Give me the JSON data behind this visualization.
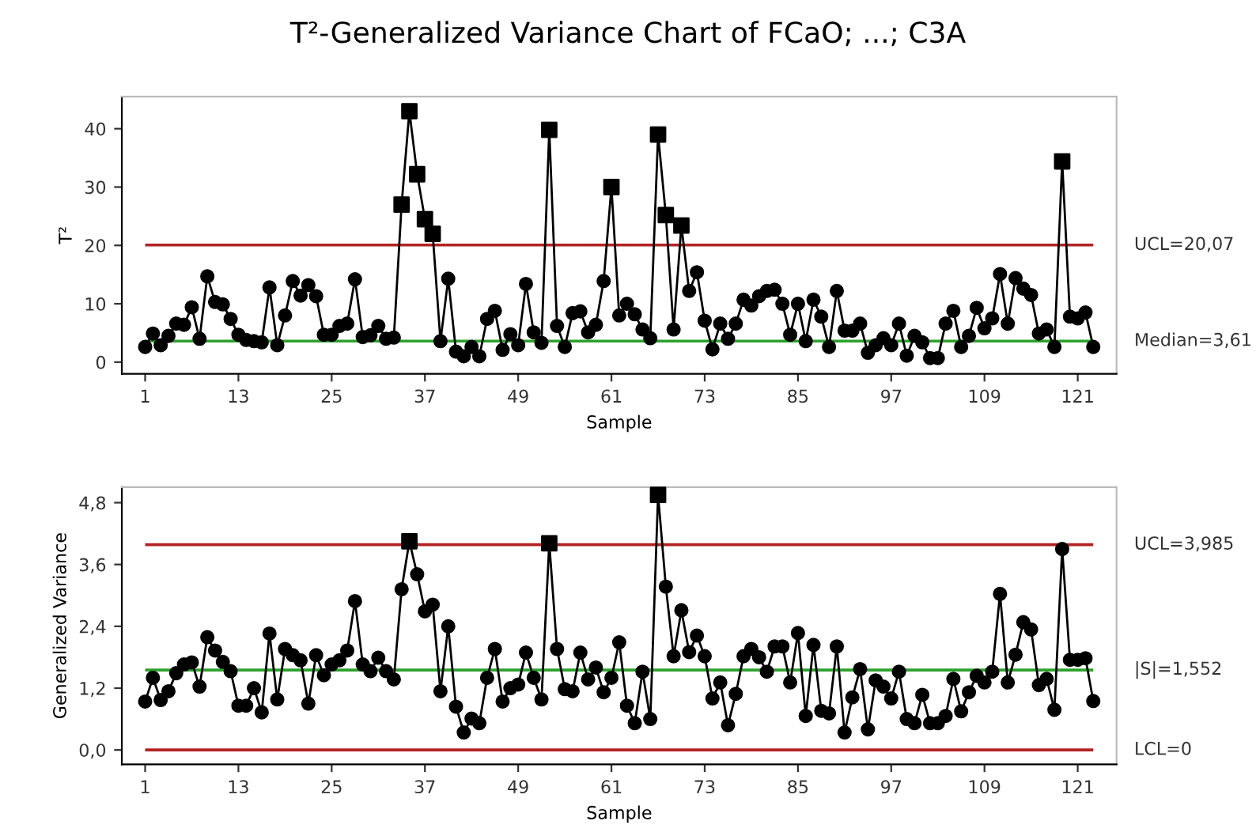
{
  "chart_data": [
    {
      "type": "line",
      "title": "T²-Generalized Variance Chart of FCaO; ...; C3A",
      "xlabel": "Sample",
      "ylabel": "T²",
      "grid": false,
      "legend": false,
      "marker": "circle",
      "line_style": "solid",
      "xlim": [
        -2,
        126
      ],
      "xticks": [
        1,
        13,
        25,
        37,
        49,
        61,
        73,
        85,
        97,
        109,
        121
      ],
      "ylim": [
        -2,
        45.5
      ],
      "yticks": [
        0,
        10,
        20,
        30,
        40
      ],
      "x": [
        1,
        2,
        3,
        4,
        5,
        6,
        7,
        8,
        9,
        10,
        11,
        12,
        13,
        14,
        15,
        16,
        17,
        18,
        19,
        20,
        21,
        22,
        23,
        24,
        25,
        26,
        27,
        28,
        29,
        30,
        31,
        32,
        33,
        34,
        35,
        36,
        37,
        38,
        39,
        40,
        41,
        42,
        43,
        44,
        45,
        46,
        47,
        48,
        49,
        50,
        51,
        52,
        53,
        54,
        55,
        56,
        57,
        58,
        59,
        60,
        61,
        62,
        63,
        64,
        65,
        66,
        67,
        68,
        69,
        70,
        71,
        72,
        73,
        74,
        75,
        76,
        77,
        78,
        79,
        80,
        81,
        82,
        83,
        84,
        85,
        86,
        87,
        88,
        89,
        90,
        91,
        92,
        93,
        94,
        95,
        96,
        97,
        98,
        99,
        100,
        101,
        102,
        103,
        104,
        105,
        106,
        107,
        108,
        109,
        110,
        111,
        112,
        113,
        114,
        115,
        116,
        117,
        118,
        119,
        120,
        121,
        122,
        123
      ],
      "series": [
        {
          "color": "#000000",
          "values": [
            2.6,
            4.9,
            2.9,
            4.5,
            6.6,
            6.4,
            9.4,
            4.0,
            14.7,
            10.3,
            9.9,
            7.4,
            4.7,
            3.8,
            3.6,
            3.4,
            12.8,
            2.9,
            8.0,
            13.9,
            11.4,
            13.2,
            11.3,
            4.7,
            4.7,
            6.2,
            6.6,
            14.2,
            4.3,
            4.6,
            6.2,
            4.0,
            4.2,
            27.0,
            43.0,
            32.2,
            24.5,
            22.0,
            3.6,
            14.3,
            1.8,
            1.0,
            2.6,
            1.0,
            7.4,
            8.8,
            2.1,
            4.8,
            2.9,
            13.4,
            5.1,
            3.3,
            39.8,
            6.2,
            2.6,
            8.4,
            8.7,
            5.1,
            6.4,
            13.9,
            30.0,
            8.0,
            10.0,
            8.2,
            5.6,
            4.1,
            39.0,
            25.2,
            5.6,
            23.4,
            12.2,
            15.4,
            7.1,
            2.2,
            6.6,
            4.0,
            6.6,
            10.7,
            9.7,
            11.3,
            12.2,
            12.4,
            10.0,
            4.7,
            10.0,
            3.6,
            10.7,
            7.8,
            2.6,
            12.2,
            5.4,
            5.4,
            6.6,
            1.6,
            2.9,
            4.1,
            2.9,
            6.6,
            1.1,
            4.5,
            3.4,
            0.7,
            0.7,
            6.6,
            8.8,
            2.6,
            4.5,
            9.3,
            5.8,
            7.5,
            15.1,
            6.6,
            14.4,
            12.6,
            11.5,
            4.9,
            5.6,
            2.6,
            34.4,
            7.8,
            7.5,
            8.5,
            2.6
          ]
        },
        {
          "type": "scatter",
          "marker": "square",
          "color": "#000000",
          "x": [
            34,
            35,
            36,
            37,
            38,
            53,
            61,
            67,
            68,
            70,
            119
          ],
          "values": [
            27.0,
            43.0,
            32.2,
            24.5,
            22.0,
            39.8,
            30.0,
            39.0,
            25.2,
            23.4,
            34.4
          ]
        }
      ],
      "ref_lines": [
        {
          "axis": "y",
          "value": 20.07,
          "label": "UCL=20,07",
          "color": "#b22222"
        },
        {
          "axis": "y",
          "value": 3.61,
          "label": "Median=3,61",
          "color": "#2ca02c"
        }
      ]
    },
    {
      "type": "line",
      "xlabel": "Sample",
      "ylabel": "Generalized Variance",
      "grid": false,
      "legend": false,
      "marker": "circle",
      "line_style": "solid",
      "xlim": [
        -2,
        126
      ],
      "xticks": [
        1,
        13,
        25,
        37,
        49,
        61,
        73,
        85,
        97,
        109,
        121
      ],
      "ylim": [
        -0.28,
        5.1
      ],
      "yticks": [
        {
          "value": 0,
          "label": "0,0"
        },
        {
          "value": 1.2,
          "label": "1,2"
        },
        {
          "value": 2.4,
          "label": "2,4"
        },
        {
          "value": 3.6,
          "label": "3,6"
        },
        {
          "value": 4.8,
          "label": "4,8"
        }
      ],
      "x": [
        1,
        2,
        3,
        4,
        5,
        6,
        7,
        8,
        9,
        10,
        11,
        12,
        13,
        14,
        15,
        16,
        17,
        18,
        19,
        20,
        21,
        22,
        23,
        24,
        25,
        26,
        27,
        28,
        29,
        30,
        31,
        32,
        33,
        34,
        35,
        36,
        37,
        38,
        39,
        40,
        41,
        42,
        43,
        44,
        45,
        46,
        47,
        48,
        49,
        50,
        51,
        52,
        53,
        54,
        55,
        56,
        57,
        58,
        59,
        60,
        61,
        62,
        63,
        64,
        65,
        66,
        67,
        68,
        69,
        70,
        71,
        72,
        73,
        74,
        75,
        76,
        77,
        78,
        79,
        80,
        81,
        82,
        83,
        84,
        85,
        86,
        87,
        88,
        89,
        90,
        91,
        92,
        93,
        94,
        95,
        96,
        97,
        98,
        99,
        100,
        101,
        102,
        103,
        104,
        105,
        106,
        107,
        108,
        109,
        110,
        111,
        112,
        113,
        114,
        115,
        116,
        117,
        118,
        119,
        120,
        121,
        122,
        123
      ],
      "series": [
        {
          "color": "#000000",
          "values": [
            0.94,
            1.4,
            0.97,
            1.14,
            1.49,
            1.66,
            1.7,
            1.23,
            2.19,
            1.93,
            1.71,
            1.53,
            0.86,
            0.86,
            1.2,
            0.73,
            2.26,
            0.98,
            1.96,
            1.84,
            1.74,
            0.9,
            1.84,
            1.45,
            1.66,
            1.74,
            1.93,
            2.89,
            1.66,
            1.53,
            1.79,
            1.53,
            1.37,
            3.12,
            4.05,
            3.41,
            2.69,
            2.82,
            1.14,
            2.4,
            0.84,
            0.34,
            0.61,
            0.52,
            1.4,
            1.96,
            0.94,
            1.2,
            1.27,
            1.89,
            1.4,
            0.98,
            4.01,
            1.96,
            1.18,
            1.14,
            1.89,
            1.37,
            1.6,
            1.12,
            1.4,
            2.09,
            0.86,
            0.52,
            1.52,
            0.6,
            4.95,
            3.17,
            1.82,
            2.71,
            1.9,
            2.22,
            1.82,
            1.0,
            1.31,
            0.48,
            1.09,
            1.82,
            1.96,
            1.8,
            1.52,
            2.01,
            2.01,
            1.31,
            2.27,
            0.66,
            2.04,
            0.76,
            0.71,
            2.01,
            0.34,
            1.02,
            1.57,
            0.4,
            1.35,
            1.23,
            1.0,
            1.52,
            0.6,
            0.52,
            1.07,
            0.52,
            0.52,
            0.66,
            1.38,
            0.75,
            1.12,
            1.44,
            1.31,
            1.52,
            3.03,
            1.31,
            1.85,
            2.48,
            2.34,
            1.26,
            1.38,
            0.78,
            3.9,
            1.75,
            1.75,
            1.78,
            0.95
          ]
        },
        {
          "type": "scatter",
          "marker": "square",
          "color": "#000000",
          "x": [
            35,
            53,
            67
          ],
          "values": [
            4.05,
            4.01,
            4.95
          ]
        }
      ],
      "ref_lines": [
        {
          "axis": "y",
          "value": 3.985,
          "label": "UCL=3,985",
          "color": "#b22222"
        },
        {
          "axis": "y",
          "value": 1.552,
          "label": "|S|=1,552",
          "color": "#2ca02c"
        },
        {
          "axis": "y",
          "value": 0,
          "label": "LCL=0",
          "color": "#b22222"
        }
      ]
    }
  ]
}
